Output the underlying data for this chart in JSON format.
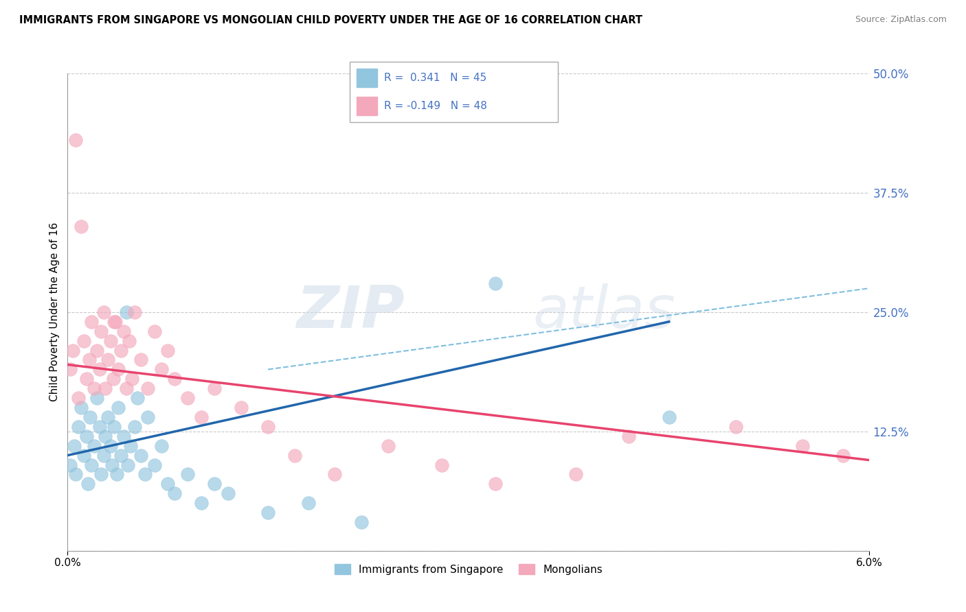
{
  "title": "IMMIGRANTS FROM SINGAPORE VS MONGOLIAN CHILD POVERTY UNDER THE AGE OF 16 CORRELATION CHART",
  "source": "Source: ZipAtlas.com",
  "ylabel": "Child Poverty Under the Age of 16",
  "x_min": 0.0,
  "x_max": 6.0,
  "y_min": 0.0,
  "y_max": 50.0,
  "yticks": [
    0.0,
    12.5,
    25.0,
    37.5,
    50.0
  ],
  "ytick_labels": [
    "",
    "12.5%",
    "25.0%",
    "37.5%",
    "50.0%"
  ],
  "blue_color": "#92c5de",
  "pink_color": "#f4a8bc",
  "trend_blue_color": "#2166ac",
  "trend_pink_color": "#e8436e",
  "trend_dash_color": "#7fbfdf",
  "scatter_blue_x": [
    0.02,
    0.05,
    0.06,
    0.08,
    0.1,
    0.12,
    0.14,
    0.15,
    0.17,
    0.18,
    0.2,
    0.22,
    0.24,
    0.25,
    0.27,
    0.28,
    0.3,
    0.32,
    0.33,
    0.35,
    0.37,
    0.38,
    0.4,
    0.42,
    0.44,
    0.45,
    0.47,
    0.5,
    0.52,
    0.55,
    0.58,
    0.6,
    0.65,
    0.7,
    0.75,
    0.8,
    0.9,
    1.0,
    1.1,
    1.2,
    1.5,
    1.8,
    2.2,
    3.2,
    4.5
  ],
  "scatter_blue_y": [
    9.0,
    11.0,
    8.0,
    13.0,
    15.0,
    10.0,
    12.0,
    7.0,
    14.0,
    9.0,
    11.0,
    16.0,
    13.0,
    8.0,
    10.0,
    12.0,
    14.0,
    11.0,
    9.0,
    13.0,
    8.0,
    15.0,
    10.0,
    12.0,
    25.0,
    9.0,
    11.0,
    13.0,
    16.0,
    10.0,
    8.0,
    14.0,
    9.0,
    11.0,
    7.0,
    6.0,
    8.0,
    5.0,
    7.0,
    6.0,
    4.0,
    5.0,
    3.0,
    28.0,
    14.0
  ],
  "scatter_pink_x": [
    0.02,
    0.04,
    0.06,
    0.08,
    0.1,
    0.12,
    0.14,
    0.16,
    0.18,
    0.2,
    0.22,
    0.24,
    0.25,
    0.27,
    0.28,
    0.3,
    0.32,
    0.34,
    0.36,
    0.38,
    0.4,
    0.42,
    0.44,
    0.46,
    0.48,
    0.5,
    0.55,
    0.6,
    0.65,
    0.7,
    0.75,
    0.8,
    0.9,
    1.0,
    1.1,
    1.3,
    1.5,
    1.7,
    2.0,
    2.4,
    2.8,
    3.2,
    3.8,
    4.2,
    5.0,
    5.5,
    5.8,
    0.35
  ],
  "scatter_pink_y": [
    19.0,
    21.0,
    43.0,
    16.0,
    34.0,
    22.0,
    18.0,
    20.0,
    24.0,
    17.0,
    21.0,
    19.0,
    23.0,
    25.0,
    17.0,
    20.0,
    22.0,
    18.0,
    24.0,
    19.0,
    21.0,
    23.0,
    17.0,
    22.0,
    18.0,
    25.0,
    20.0,
    17.0,
    23.0,
    19.0,
    21.0,
    18.0,
    16.0,
    14.0,
    17.0,
    15.0,
    13.0,
    10.0,
    8.0,
    11.0,
    9.0,
    7.0,
    8.0,
    12.0,
    13.0,
    11.0,
    10.0,
    24.0
  ],
  "blue_trend_x": [
    0.0,
    4.5
  ],
  "blue_trend_y": [
    10.0,
    24.0
  ],
  "pink_trend_x": [
    0.0,
    6.0
  ],
  "pink_trend_y": [
    19.5,
    9.5
  ],
  "dash_trend_x": [
    1.5,
    6.0
  ],
  "dash_trend_y": [
    19.0,
    27.5
  ],
  "watermark_zip": "ZIP",
  "watermark_atlas": "atlas",
  "legend1_label": "Immigrants from Singapore",
  "legend2_label": "Mongolians",
  "legend_r1_text": "R =  0.341   N = 45",
  "legend_r2_text": "R = -0.149   N = 48",
  "label_color": "#4472c4"
}
